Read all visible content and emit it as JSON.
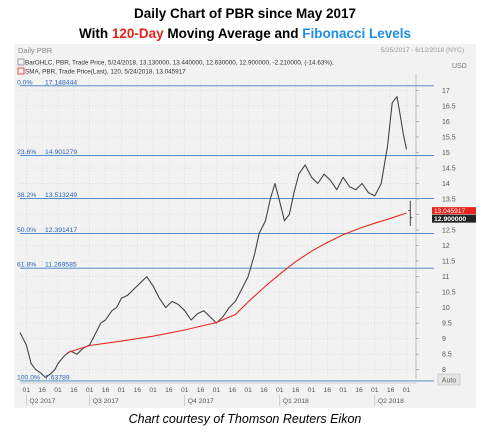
{
  "title_line1": "Daily Chart of PBR since May 2017",
  "title_line2": {
    "prefix": "With ",
    "highlight1": "120-Day",
    "middle": " Moving Average and ",
    "highlight2": "Fibonacci Levels"
  },
  "footer": "Chart courtesy of Thomson Reuters Eikon",
  "panel": {
    "name": "Daily PBR",
    "date_range": "5/25/2017 - 6/12/2018 (NYC)",
    "currency": "USD",
    "ohlc_legend": "BarOHLC, PBR, Trade Price, 5/24/2018, 13.130000, 13.440000, 12.630000, 12.900000, -2.210000, (-14.63%),",
    "sma_legend": "SMA, PBR, Trade Price(Last), 120, 5/24/2018, 13.045917",
    "auto_label": "Auto",
    "last_price_tag": "12.900000",
    "sma_tag": "13.045917"
  },
  "colors": {
    "price_bars": "#444444",
    "sma_line": "#e8261c",
    "fib_line": "#3c7fc4",
    "fib_label": "#2a62b8",
    "grid": "#c8c8c8",
    "title_red": "#e0231b",
    "title_blue": "#1e8ee6"
  },
  "chart_data": {
    "type": "line",
    "y_axis": {
      "side": "right",
      "range": [
        7.7,
        17.4
      ],
      "ticks": [
        8,
        8.5,
        9,
        9.5,
        10,
        10.5,
        11,
        11.5,
        12,
        12.5,
        13,
        13.5,
        14,
        14.5,
        15,
        15.5,
        16,
        16.5,
        17
      ],
      "tick_labels": [
        "8",
        "8.5",
        "9",
        "9.5",
        "10",
        "10.5",
        "11",
        "11.5",
        "12",
        "12.5",
        "13",
        "13.5",
        "14",
        "14.5",
        "15",
        "15.5",
        "16",
        "16.5",
        "17"
      ]
    },
    "x_axis": {
      "day_ticks": [
        {
          "m": 0,
          "label": "01"
        },
        {
          "m": 0.5,
          "label": "16"
        },
        {
          "m": 1,
          "label": "01"
        },
        {
          "m": 1.5,
          "label": "16"
        },
        {
          "m": 2,
          "label": "01"
        },
        {
          "m": 2.5,
          "label": "16"
        },
        {
          "m": 3,
          "label": "01"
        },
        {
          "m": 3.5,
          "label": "16"
        },
        {
          "m": 4,
          "label": "01"
        },
        {
          "m": 4.5,
          "label": "16"
        },
        {
          "m": 5,
          "label": "01"
        },
        {
          "m": 5.5,
          "label": "16"
        },
        {
          "m": 6,
          "label": "01"
        },
        {
          "m": 6.5,
          "label": "16"
        },
        {
          "m": 7,
          "label": "01"
        },
        {
          "m": 7.5,
          "label": "16"
        },
        {
          "m": 8,
          "label": "01"
        },
        {
          "m": 8.5,
          "label": "16"
        },
        {
          "m": 9,
          "label": "01"
        },
        {
          "m": 9.5,
          "label": "16"
        },
        {
          "m": 10,
          "label": "01"
        },
        {
          "m": 10.5,
          "label": "16"
        },
        {
          "m": 11,
          "label": "01"
        },
        {
          "m": 11.5,
          "label": "16"
        },
        {
          "m": 12,
          "label": "01"
        }
      ],
      "quarters": [
        {
          "label": "Q2 2017",
          "start_m": 0
        },
        {
          "label": "Q3 2017",
          "start_m": 2
        },
        {
          "label": "Q4 2017",
          "start_m": 5
        },
        {
          "label": "Q1 2018",
          "start_m": 8
        },
        {
          "label": "Q2 2018",
          "start_m": 11
        }
      ]
    },
    "fibonacci_levels": [
      {
        "label": "0.0%",
        "value": 17.148444,
        "value_text": "17.148444"
      },
      {
        "label": "23.6%",
        "value": 14.901279,
        "value_text": "14.901279"
      },
      {
        "label": "38.2%",
        "value": 13.513249,
        "value_text": "13.513249"
      },
      {
        "label": "50.0%",
        "value": 12.391417,
        "value_text": "12.391417"
      },
      {
        "label": "61.8%",
        "value": 11.269585,
        "value_text": "11.269585"
      },
      {
        "label": "100.0%",
        "value": 7.63789,
        "value_text": "7.63789"
      }
    ],
    "series": [
      {
        "name": "PBR",
        "kind": "price",
        "points": [
          [
            -0.2,
            9.2
          ],
          [
            0.0,
            8.8
          ],
          [
            0.15,
            8.2
          ],
          [
            0.3,
            8.0
          ],
          [
            0.45,
            7.9
          ],
          [
            0.6,
            7.75
          ],
          [
            0.75,
            7.85
          ],
          [
            0.9,
            8.0
          ],
          [
            1.0,
            8.2
          ],
          [
            1.2,
            8.45
          ],
          [
            1.4,
            8.6
          ],
          [
            1.6,
            8.5
          ],
          [
            1.8,
            8.7
          ],
          [
            2.0,
            8.8
          ],
          [
            2.2,
            9.2
          ],
          [
            2.35,
            9.5
          ],
          [
            2.5,
            9.6
          ],
          [
            2.7,
            9.9
          ],
          [
            2.85,
            10.0
          ],
          [
            3.0,
            10.3
          ],
          [
            3.2,
            10.4
          ],
          [
            3.4,
            10.6
          ],
          [
            3.6,
            10.8
          ],
          [
            3.8,
            11.0
          ],
          [
            4.0,
            10.7
          ],
          [
            4.2,
            10.3
          ],
          [
            4.4,
            10.0
          ],
          [
            4.6,
            10.2
          ],
          [
            4.8,
            10.1
          ],
          [
            5.0,
            9.9
          ],
          [
            5.2,
            9.6
          ],
          [
            5.4,
            9.8
          ],
          [
            5.6,
            9.9
          ],
          [
            5.8,
            9.7
          ],
          [
            6.0,
            9.5
          ],
          [
            6.2,
            9.7
          ],
          [
            6.4,
            10.0
          ],
          [
            6.6,
            10.2
          ],
          [
            6.8,
            10.6
          ],
          [
            7.0,
            11.0
          ],
          [
            7.2,
            11.7
          ],
          [
            7.35,
            12.4
          ],
          [
            7.55,
            12.8
          ],
          [
            7.7,
            13.5
          ],
          [
            7.85,
            14.0
          ],
          [
            8.0,
            13.4
          ],
          [
            8.15,
            12.8
          ],
          [
            8.3,
            13.0
          ],
          [
            8.45,
            13.7
          ],
          [
            8.6,
            14.3
          ],
          [
            8.8,
            14.6
          ],
          [
            9.0,
            14.2
          ],
          [
            9.2,
            14.0
          ],
          [
            9.4,
            14.3
          ],
          [
            9.6,
            14.1
          ],
          [
            9.8,
            13.8
          ],
          [
            10.0,
            14.2
          ],
          [
            10.2,
            13.9
          ],
          [
            10.4,
            13.8
          ],
          [
            10.6,
            14.0
          ],
          [
            10.8,
            13.7
          ],
          [
            11.0,
            13.6
          ],
          [
            11.2,
            14.0
          ],
          [
            11.4,
            15.2
          ],
          [
            11.55,
            16.6
          ],
          [
            11.7,
            16.8
          ],
          [
            11.8,
            16.2
          ],
          [
            11.9,
            15.6
          ],
          [
            12.0,
            15.1
          ]
        ],
        "last": {
          "open": 13.13,
          "high": 13.44,
          "low": 12.63,
          "close": 12.9,
          "change": -2.21,
          "change_pct": -14.63,
          "date": "5/24/2018"
        }
      },
      {
        "name": "SMA 120",
        "kind": "sma",
        "points": [
          [
            1.3,
            8.55
          ],
          [
            2.0,
            8.78
          ],
          [
            3.0,
            8.92
          ],
          [
            4.0,
            9.08
          ],
          [
            5.0,
            9.28
          ],
          [
            6.0,
            9.52
          ],
          [
            6.6,
            9.78
          ],
          [
            7.0,
            10.18
          ],
          [
            7.5,
            10.65
          ],
          [
            8.0,
            11.08
          ],
          [
            8.5,
            11.48
          ],
          [
            9.0,
            11.82
          ],
          [
            9.5,
            12.1
          ],
          [
            10.0,
            12.35
          ],
          [
            10.5,
            12.55
          ],
          [
            11.0,
            12.72
          ],
          [
            11.5,
            12.88
          ],
          [
            12.0,
            13.05
          ]
        ]
      }
    ]
  }
}
